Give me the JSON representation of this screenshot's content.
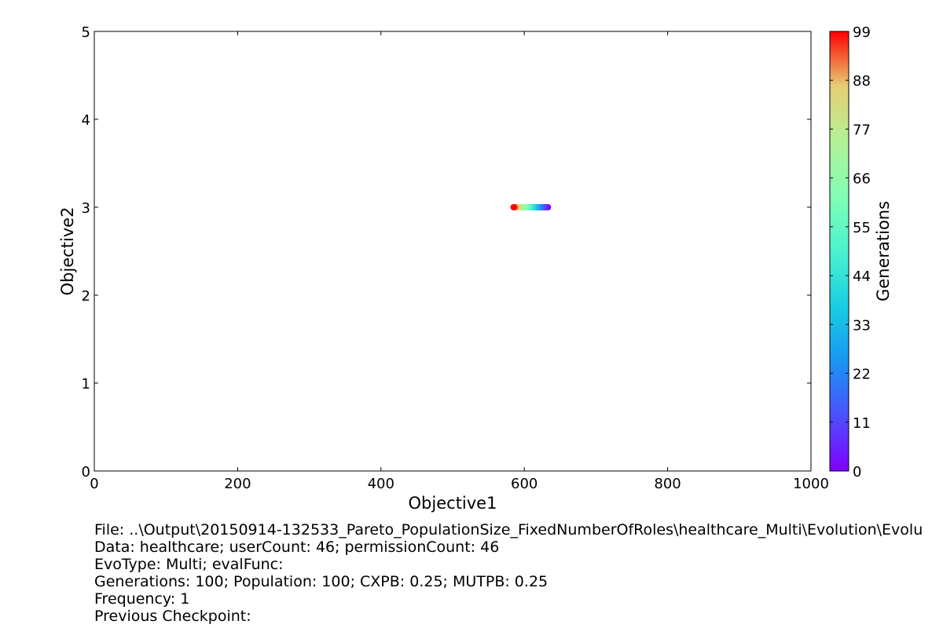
{
  "chart_data": {
    "type": "scatter",
    "title": "",
    "xlabel": "Objective1",
    "ylabel": "Objective2",
    "xlim": [
      0,
      1000
    ],
    "ylim": [
      0,
      5
    ],
    "x_ticks": [
      "0",
      "200",
      "400",
      "600",
      "800",
      "1000"
    ],
    "y_ticks": [
      "0",
      "1",
      "2",
      "3",
      "4",
      "5"
    ],
    "grid": false,
    "colorbar": {
      "label": "Generations",
      "range": [
        0,
        99
      ],
      "ticks": [
        "0",
        "11",
        "22",
        "33",
        "44",
        "55",
        "66",
        "77",
        "88",
        "99"
      ],
      "colormap": "rainbow"
    },
    "series": [
      {
        "x": [
          633,
          630,
          628,
          626,
          624,
          622,
          620,
          618,
          616,
          614,
          612,
          610,
          608,
          606,
          604,
          602,
          600,
          598,
          596,
          594,
          592,
          590,
          588,
          587,
          586,
          585
        ],
        "y": [
          3,
          3,
          3,
          3,
          3,
          3,
          3,
          3,
          3,
          3,
          3,
          3,
          3,
          3,
          3,
          3,
          3,
          3,
          3,
          3,
          3,
          3,
          3,
          3,
          3,
          3
        ],
        "generation": [
          0,
          4,
          8,
          12,
          16,
          20,
          24,
          28,
          32,
          36,
          40,
          44,
          48,
          52,
          56,
          60,
          64,
          68,
          72,
          76,
          80,
          84,
          88,
          92,
          96,
          99
        ]
      }
    ]
  },
  "info": {
    "file": "File: ..\\Output\\20150914-132533_Pareto_PopulationSize_FixedNumberOfRoles\\healthcare_Multi\\Evolution\\Evolu",
    "data": "Data: healthcare; userCount: 46; permissionCount: 46",
    "evo": "EvoType: Multi; evalFunc:",
    "params": "Generations: 100; Population: 100; CXPB: 0.25; MUTPB: 0.25",
    "frequency": "Frequency: 1",
    "checkpoint": "Previous Checkpoint:"
  }
}
